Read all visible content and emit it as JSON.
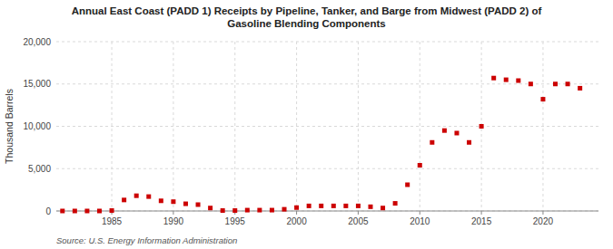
{
  "chart_data": {
    "type": "scatter",
    "title": "Annual East Coast (PADD 1) Receipts by Pipeline, Tanker, and Barge from Midwest (PADD 2) of\nGasoline Blending Components",
    "ylabel": "Thousand Barrels",
    "annotations": [
      "Source: U.S. Energy Information Administration"
    ],
    "x": [
      1981,
      1982,
      1983,
      1984,
      1985,
      1986,
      1987,
      1988,
      1989,
      1990,
      1991,
      1992,
      1993,
      1994,
      1995,
      1996,
      1997,
      1998,
      1999,
      2000,
      2001,
      2002,
      2003,
      2004,
      2005,
      2006,
      2007,
      2008,
      2009,
      2010,
      2011,
      2012,
      2013,
      2014,
      2015,
      2016,
      2017,
      2018,
      2019,
      2020,
      2021,
      2022,
      2023
    ],
    "values": [
      0,
      0,
      0,
      0,
      50,
      1300,
      1800,
      1700,
      1200,
      1100,
      850,
      750,
      350,
      50,
      50,
      100,
      100,
      100,
      200,
      400,
      600,
      600,
      600,
      600,
      600,
      500,
      350,
      900,
      3100,
      5400,
      8100,
      9500,
      9200,
      8100,
      10000,
      15700,
      15500,
      15400,
      15000,
      13200,
      15000,
      15000,
      14500
    ],
    "color": "#cc0000",
    "marker": "square",
    "xlim": [
      1980.5,
      2024.5
    ],
    "ylim": [
      0,
      20000
    ],
    "xticks": [
      1985,
      1990,
      1995,
      2000,
      2005,
      2010,
      2015,
      2020
    ],
    "yticks": [
      0,
      {
        "value": 5000,
        "label": "5,000"
      },
      {
        "value": 10000,
        "label": "10,000"
      },
      {
        "value": 15000,
        "label": "15,000"
      },
      {
        "value": 20000,
        "label": "20,000"
      }
    ],
    "grid": true
  }
}
